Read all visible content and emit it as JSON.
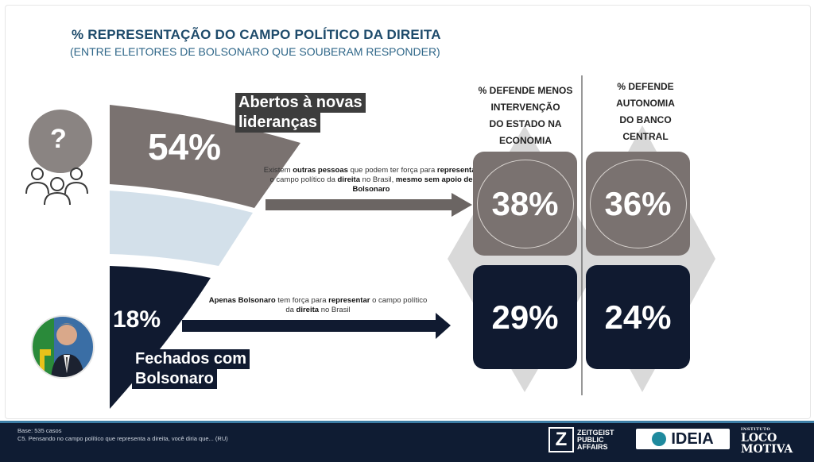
{
  "header": {
    "title": "% REPRESENTAÇÃO DO CAMPO POLÍTICO DA DIREITA",
    "subtitle": "(ENTRE ELEITORES DE BOLSONARO QUE SOUBERAM RESPONDER)"
  },
  "chart_data": {
    "type": "pie",
    "segments": [
      {
        "name": "Abertos à novas lideranças",
        "value": 54,
        "label": "54%",
        "color": "#7a7270"
      },
      {
        "name": "",
        "value": 28,
        "label": "",
        "color": "#d3e0ea"
      },
      {
        "name": "Fechados com Bolsonaro",
        "value": 18,
        "label": "18%",
        "color": "#101a30"
      }
    ],
    "notes": {
      "open": "Existem outras pessoas que podem ter força para representar o campo político da direita no Brasil, mesmo sem apoio de Bolsonaro",
      "closed": "Apenas Bolsonaro tem força para representar o campo político da direita no Brasil"
    },
    "columns": [
      {
        "header": "% DEFENDE MENOS INTERVENÇÃO DO ESTADO NA ECONOMIA",
        "open": "38%",
        "closed": "29%"
      },
      {
        "header": "% DEFENDE AUTONOMIA DO BANCO CENTRAL",
        "open": "36%",
        "closed": "24%"
      }
    ]
  },
  "labels": {
    "open_line1": "Abertos à novas",
    "open_line2": "lideranças",
    "closed_line1": "Fechados com",
    "closed_line2": "Bolsonaro",
    "question_mark": "?"
  },
  "notes_rich": {
    "open": [
      "Existem ",
      "outras pessoas",
      " que podem ter força para ",
      "representar",
      " o campo político da ",
      "direita",
      " no Brasil, ",
      "mesmo sem apoio de Bolsonaro"
    ],
    "closed": [
      "Apenas Bolsonaro",
      " tem força para ",
      "representar",
      " o campo político da ",
      "direita",
      " no Brasil"
    ]
  },
  "col_headers": {
    "c1": [
      "% DEFENDE MENOS",
      "INTERVENÇÃO",
      "DO ESTADO NA",
      "ECONOMIA"
    ],
    "c2": [
      "% DEFENDE",
      "AUTONOMIA",
      "DO BANCO",
      "CENTRAL"
    ]
  },
  "footer": {
    "base": "Base: 535 casos",
    "question": "C5. Pensando no campo político que representa a direita, você diria que... (RU)",
    "logo1_mark": "Z",
    "logo1_text": [
      "ZEITGEIST",
      "PUBLIC",
      "AFFAIRS"
    ],
    "logo2_text": "IDEIA",
    "logo3_small": "INSTITUTO",
    "logo3_line1": "LOCO",
    "logo3_line2": "MOTIVA"
  },
  "colors": {
    "open_gray": "#7a7270",
    "light_blue": "#d3e0ea",
    "navy": "#101a30",
    "arrow": "#6b6563",
    "title_blue": "#1e4b6b"
  }
}
